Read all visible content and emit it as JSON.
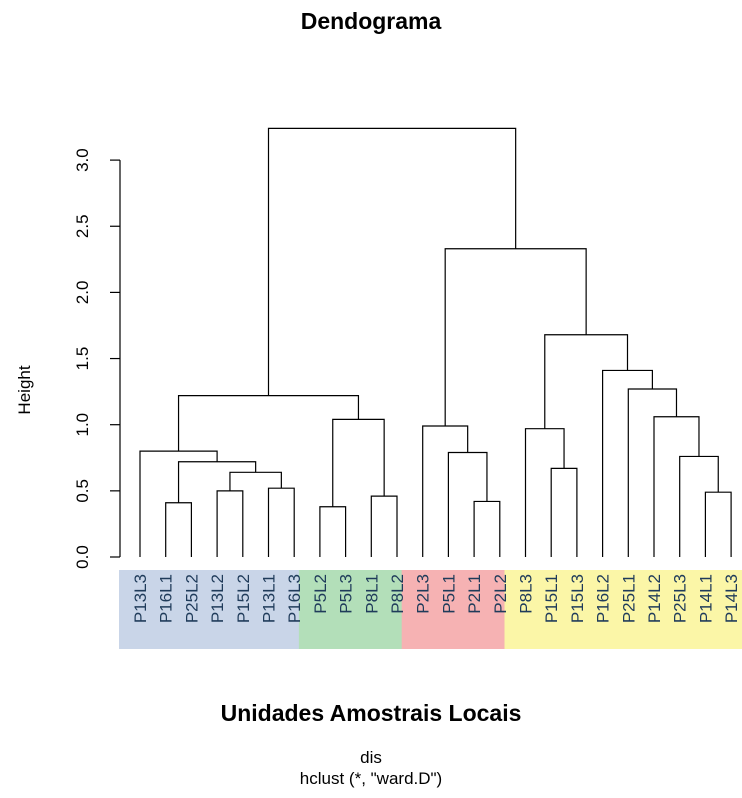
{
  "chart_data": {
    "type": "dendrogram",
    "title": "Dendograma",
    "xlabel": "Unidades Amostrais Locais",
    "ylabel": "Height",
    "sub_lines": [
      "dis",
      "hclust (*, \"ward.D\")"
    ],
    "ylim": [
      0,
      3.3
    ],
    "yticks": [
      0.0,
      0.5,
      1.0,
      1.5,
      2.0,
      2.5,
      3.0
    ],
    "ytick_labels": [
      "0.0",
      "0.5",
      "1.0",
      "1.5",
      "2.0",
      "2.5",
      "3.0"
    ],
    "labels": [
      "P13L3",
      "P16L1",
      "P25L2",
      "P13L2",
      "P15L2",
      "P13L1",
      "P16L3",
      "P5L2",
      "P5L3",
      "P8L1",
      "P8L2",
      "P2L3",
      "P5L1",
      "P2L1",
      "P2L2",
      "P8L3",
      "P15L1",
      "P15L3",
      "P16L2",
      "P25L1",
      "P14L2",
      "P25L3",
      "P14L1",
      "P14L3"
    ],
    "merges": [
      {
        "left": "P16L1",
        "right": "P25L2",
        "height": 0.41
      },
      {
        "left": "P13L2",
        "right": "P15L2",
        "height": 0.5
      },
      {
        "left": "P13L1",
        "right": "P16L3",
        "height": 0.52
      },
      {
        "left": 2,
        "right": 3,
        "height": 0.64
      },
      {
        "left": 1,
        "right": 4,
        "height": 0.72
      },
      {
        "left": "P13L3",
        "right": 5,
        "height": 0.8
      },
      {
        "left": "P5L2",
        "right": "P5L3",
        "height": 0.38
      },
      {
        "left": "P8L1",
        "right": "P8L2",
        "height": 0.46
      },
      {
        "left": 7,
        "right": 8,
        "height": 1.04
      },
      {
        "left": 6,
        "right": 9,
        "height": 1.22
      },
      {
        "left": "P2L1",
        "right": "P2L2",
        "height": 0.42
      },
      {
        "left": "P5L1",
        "right": 11,
        "height": 0.79
      },
      {
        "left": "P2L3",
        "right": 12,
        "height": 0.99
      },
      {
        "left": "P15L1",
        "right": "P15L3",
        "height": 0.67
      },
      {
        "left": "P8L3",
        "right": 14,
        "height": 0.97
      },
      {
        "left": "P14L1",
        "right": "P14L3",
        "height": 0.49
      },
      {
        "left": "P25L3",
        "right": 16,
        "height": 0.76
      },
      {
        "left": "P14L2",
        "right": 17,
        "height": 1.06
      },
      {
        "left": "P25L1",
        "right": 18,
        "height": 1.27
      },
      {
        "left": "P16L2",
        "right": 19,
        "height": 1.41
      },
      {
        "left": 15,
        "right": 20,
        "height": 1.68
      },
      {
        "left": 13,
        "right": 21,
        "height": 2.33
      },
      {
        "left": 10,
        "right": 22,
        "height": 3.24
      }
    ],
    "groups": [
      {
        "members": [
          "P13L3",
          "P16L1",
          "P25L2",
          "P13L2",
          "P15L2",
          "P13L1",
          "P16L3"
        ],
        "color": "#c9d5e8"
      },
      {
        "members": [
          "P5L2",
          "P5L3",
          "P8L1",
          "P8L2"
        ],
        "color": "#b3dfb9"
      },
      {
        "members": [
          "P2L3",
          "P5L1",
          "P2L1",
          "P2L2"
        ],
        "color": "#f6b2b3"
      },
      {
        "members": [
          "P8L3",
          "P15L1",
          "P15L3",
          "P16L2",
          "P25L1",
          "P14L2",
          "P25L3",
          "P14L1",
          "P14L3"
        ],
        "color": "#fbf6a7"
      }
    ],
    "line_color": "#000000",
    "label_color": "#1f3b5a",
    "grid": false
  }
}
